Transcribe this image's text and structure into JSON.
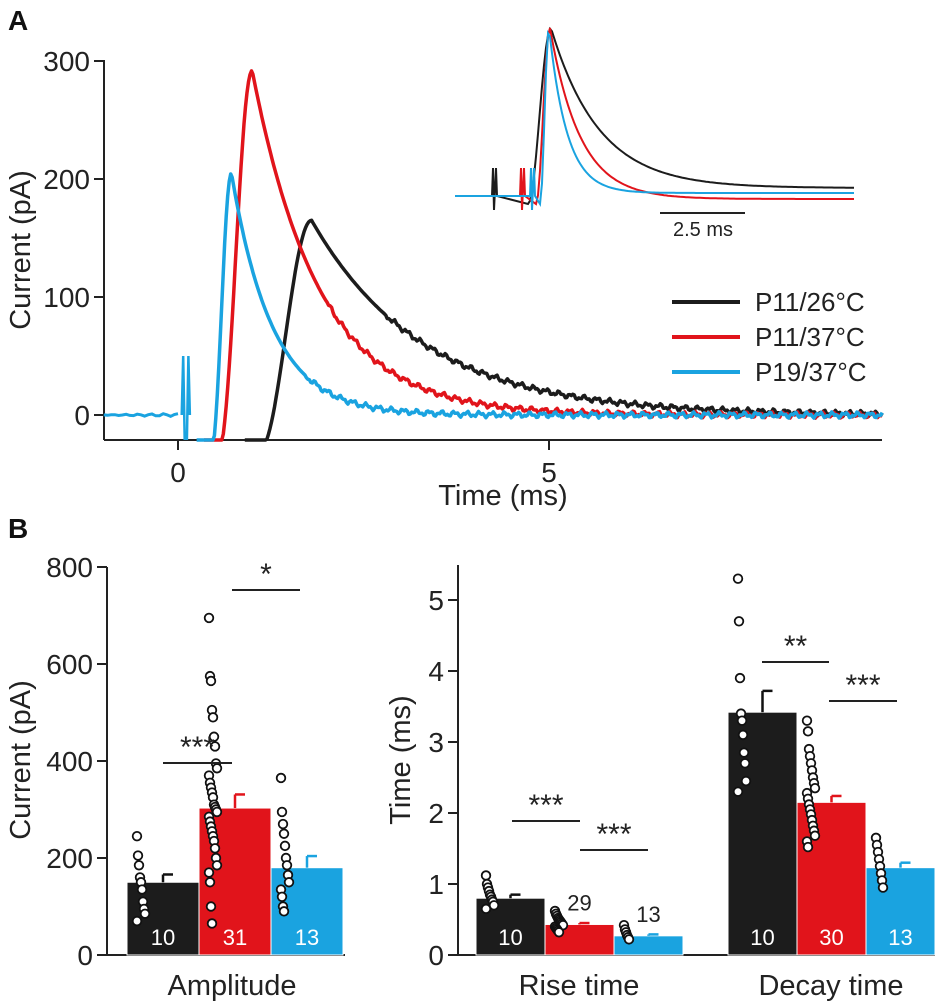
{
  "colors": {
    "black": "#1c1c1c",
    "red": "#e1141b",
    "blue": "#1aa3e0",
    "axis": "#222222"
  },
  "panelA": {
    "letter": "A",
    "legend": [
      {
        "label": "P11/26°C",
        "color": "#1c1c1c"
      },
      {
        "label": "P11/37°C",
        "color": "#e1141b"
      },
      {
        "label": "P19/37°C",
        "color": "#1aa3e0"
      }
    ],
    "inset_scale_label": "2.5 ms"
  },
  "panelB": {
    "letter": "B",
    "stars": {
      "amp_1": "***",
      "amp_2": "*",
      "rise_1": "***",
      "rise_2": "***",
      "decay_1": "**",
      "decay_2": "***"
    }
  },
  "chart_data": [
    {
      "type": "line",
      "id": "A",
      "xlabel": "Time (ms)",
      "ylabel": "Current (pA)",
      "xlim": [
        -1,
        9.5
      ],
      "ylim": [
        -20,
        300
      ],
      "xticks": [
        0,
        5
      ],
      "yticks": [
        0,
        100,
        200,
        300
      ],
      "series": [
        {
          "name": "P11/26°C",
          "color": "#1c1c1c",
          "peak_time": 1.8,
          "peak": 165,
          "onset": 1.1,
          "decay_tau": 1.5
        },
        {
          "name": "P11/37°C",
          "color": "#e1141b",
          "peak_time": 1.0,
          "peak": 292,
          "onset": 0.55,
          "decay_tau": 0.9
        },
        {
          "name": "P19/37°C",
          "color": "#1aa3e0",
          "peak_time": 0.72,
          "peak": 205,
          "onset": 0.45,
          "decay_tau": 0.55
        }
      ]
    },
    {
      "type": "bar",
      "id": "B-amplitude",
      "ylabel": "Current (pA)",
      "category_label": "Amplitude",
      "ylim": [
        0,
        800
      ],
      "yticks": [
        0,
        200,
        400,
        600,
        800
      ],
      "series": [
        {
          "name": "P11/26°C",
          "color": "#1c1c1c",
          "value": 150,
          "error": 16,
          "n": "10",
          "points": [
            245,
            205,
            185,
            160,
            150,
            135,
            110,
            95,
            85,
            70
          ]
        },
        {
          "name": "P11/37°C",
          "color": "#e1141b",
          "value": 303,
          "error": 28,
          "n": "31",
          "points": [
            695,
            575,
            565,
            505,
            490,
            450,
            430,
            395,
            385,
            370,
            355,
            345,
            335,
            325,
            310,
            305,
            300,
            295,
            285,
            275,
            265,
            255,
            245,
            235,
            220,
            200,
            185,
            170,
            150,
            100,
            65
          ]
        },
        {
          "name": "P19/37°C",
          "color": "#1aa3e0",
          "value": 180,
          "error": 24,
          "n": "13",
          "points": [
            365,
            295,
            270,
            250,
            225,
            200,
            185,
            165,
            150,
            135,
            120,
            100,
            90
          ]
        }
      ]
    },
    {
      "type": "bar",
      "id": "B-time",
      "ylabel": "Time (ms)",
      "ylim": [
        0,
        5.5
      ],
      "yticks": [
        0,
        1,
        2,
        3,
        4,
        5
      ],
      "groups": [
        {
          "category": "Rise time",
          "series": [
            {
              "name": "P11/26°C",
              "color": "#1c1c1c",
              "value": 0.8,
              "error": 0.05,
              "n": "10",
              "points": [
                1.12,
                1.0,
                0.95,
                0.9,
                0.85,
                0.82,
                0.78,
                0.75,
                0.7,
                0.65
              ]
            },
            {
              "name": "P11/37°C",
              "color": "#e1141b",
              "value": 0.43,
              "error": 0.02,
              "n": "29",
              "points": [
                0.62,
                0.58,
                0.55,
                0.52,
                0.5,
                0.48,
                0.46,
                0.44,
                0.42,
                0.4,
                0.38,
                0.36,
                0.34,
                0.32
              ]
            },
            {
              "name": "P19/37°C",
              "color": "#1aa3e0",
              "value": 0.27,
              "error": 0.02,
              "n": "13",
              "points": [
                0.42,
                0.36,
                0.32,
                0.28,
                0.25,
                0.22
              ]
            }
          ]
        },
        {
          "category": "Decay time",
          "series": [
            {
              "name": "P11/26°C",
              "color": "#1c1c1c",
              "value": 3.42,
              "error": 0.3,
              "n": "10",
              "points": [
                5.3,
                4.7,
                3.9,
                3.4,
                3.3,
                3.1,
                2.85,
                2.7,
                2.45,
                2.3
              ]
            },
            {
              "name": "P11/37°C",
              "color": "#e1141b",
              "value": 2.15,
              "error": 0.09,
              "n": "30",
              "points": [
                3.3,
                3.15,
                2.9,
                2.8,
                2.7,
                2.6,
                2.5,
                2.42,
                2.35,
                2.28,
                2.2,
                2.12,
                2.05,
                1.98,
                1.9,
                1.82,
                1.75,
                1.68,
                1.6,
                1.52
              ]
            },
            {
              "name": "P19/37°C",
              "color": "#1aa3e0",
              "value": 1.23,
              "error": 0.07,
              "n": "13",
              "points": [
                1.65,
                1.55,
                1.45,
                1.35,
                1.25,
                1.15,
                1.05,
                0.95
              ]
            }
          ]
        }
      ]
    }
  ]
}
